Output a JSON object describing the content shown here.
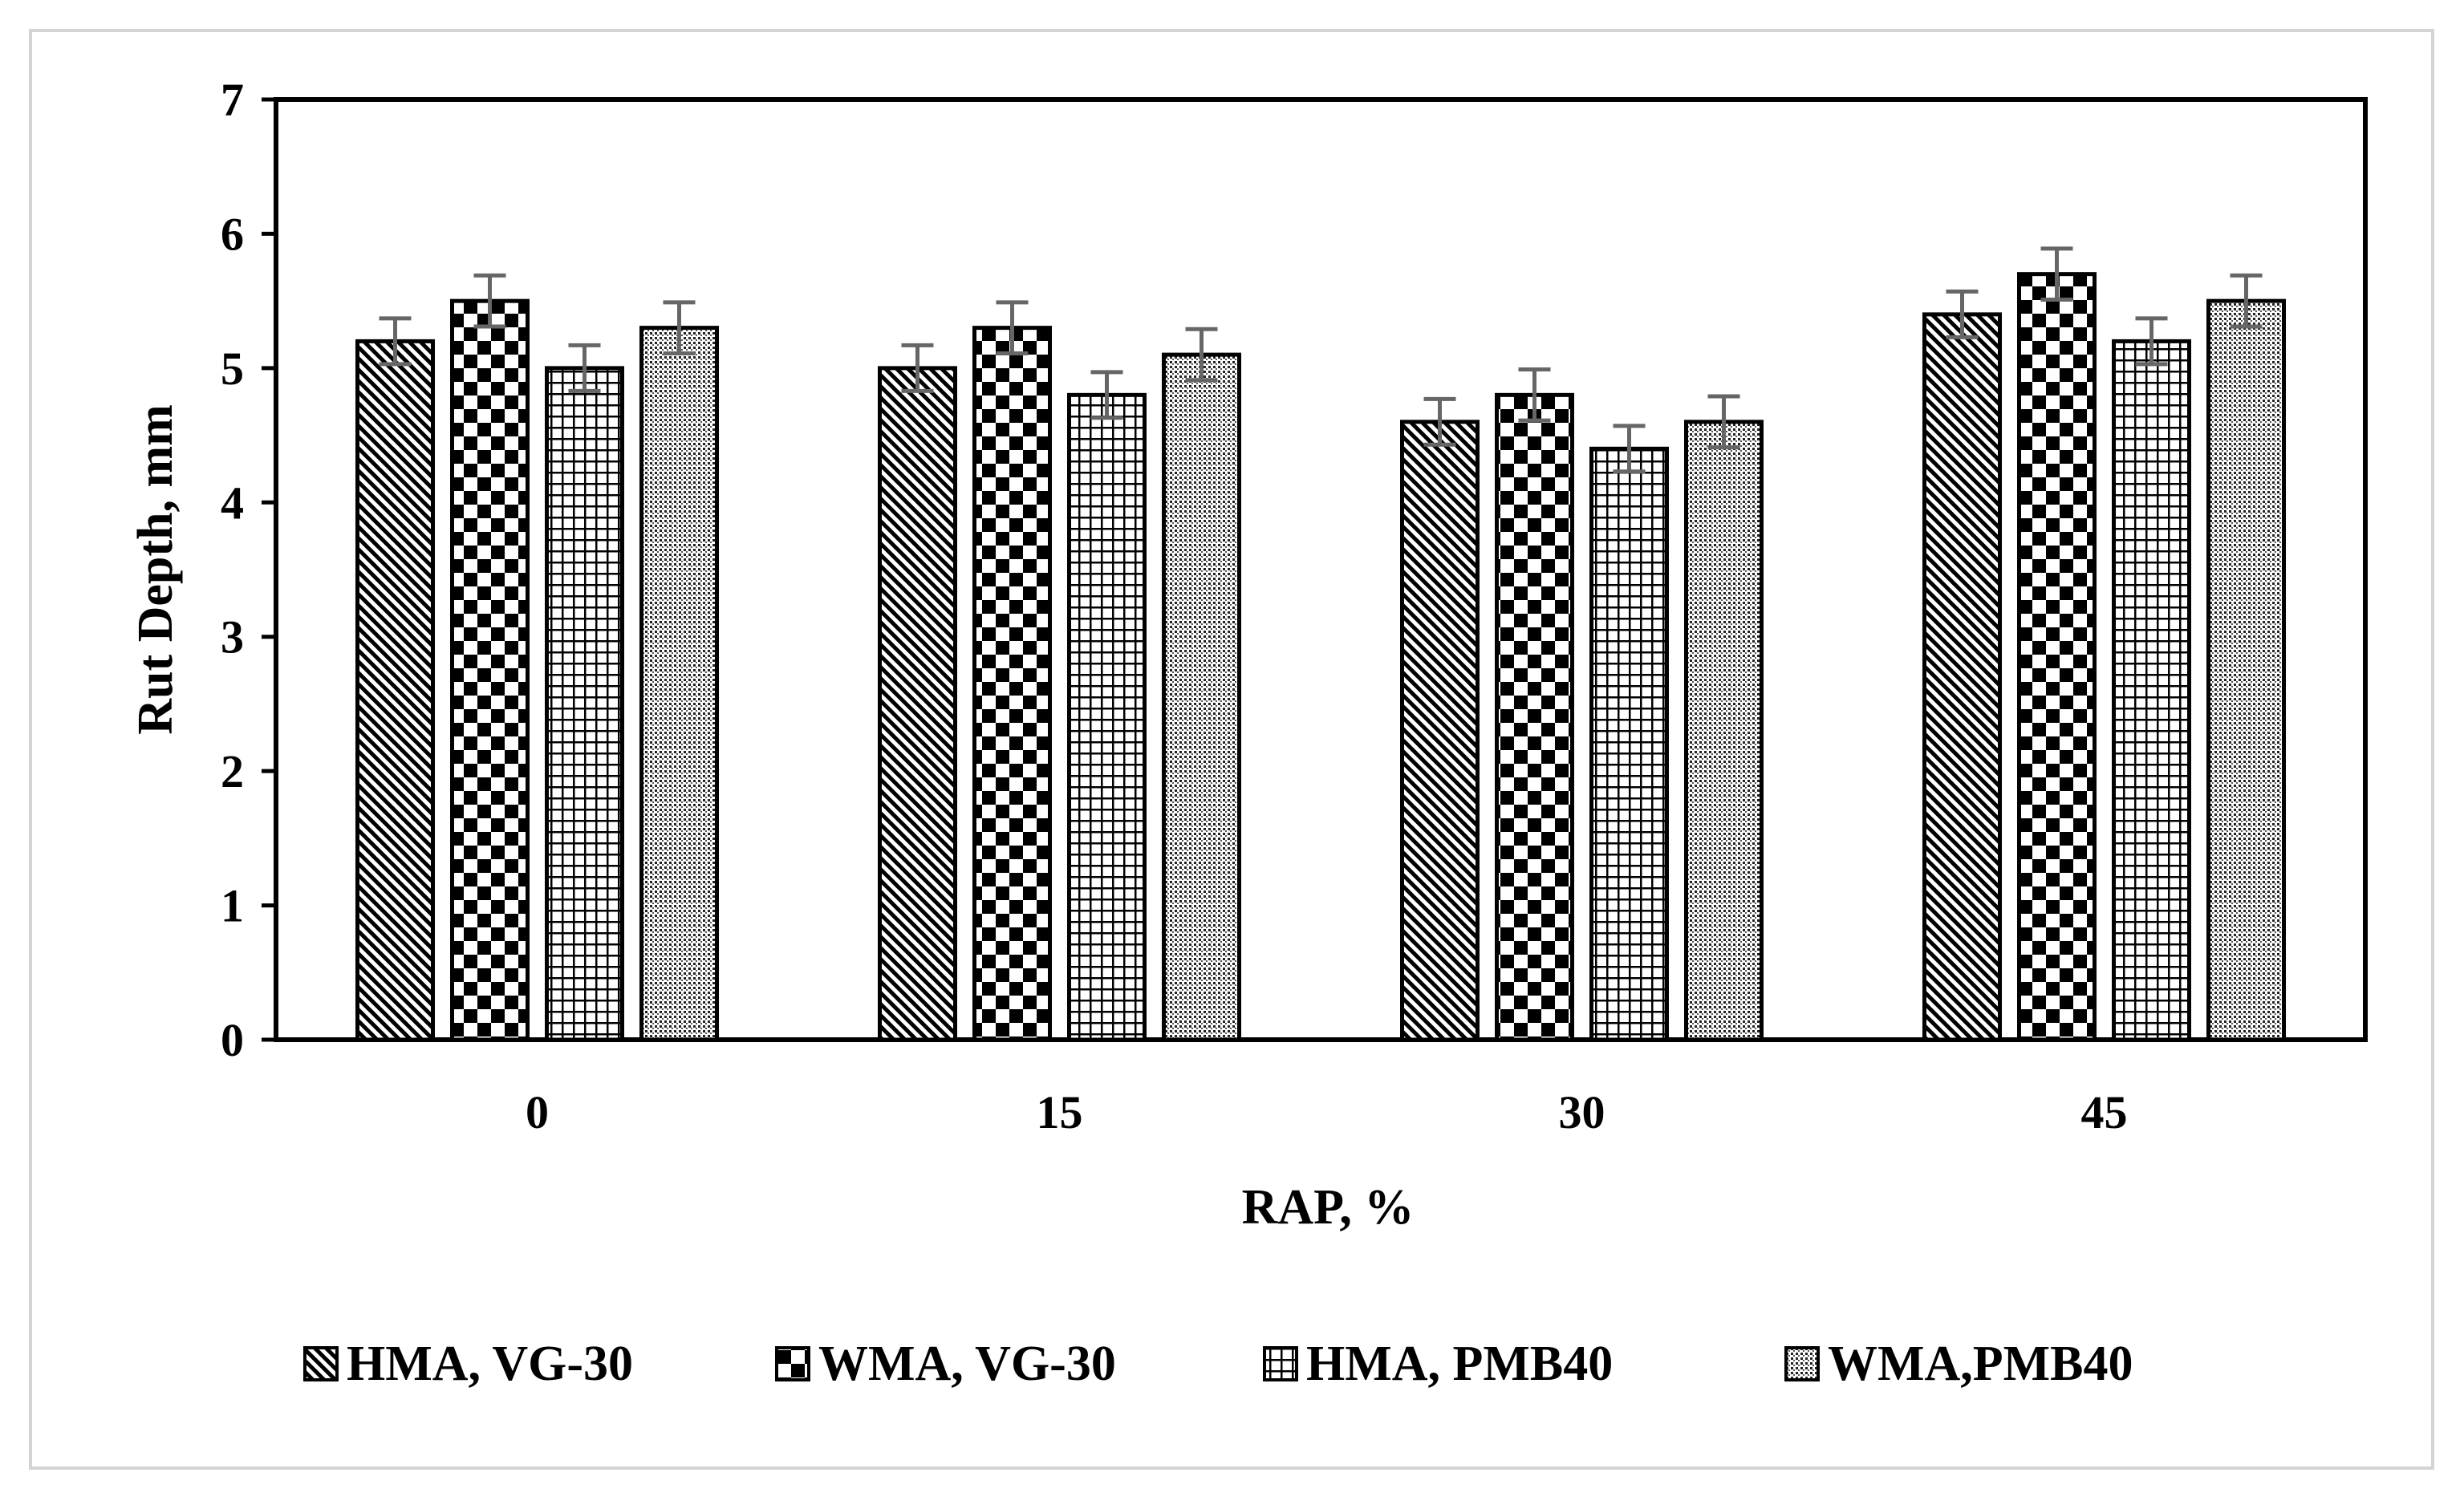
{
  "chart_data": {
    "type": "bar",
    "title": "",
    "xlabel": "RAP, %",
    "ylabel": "Rut Depth, mm",
    "categories": [
      "0",
      "15",
      "30",
      "45"
    ],
    "ylim": [
      0,
      7
    ],
    "yticks": [
      "0",
      "1",
      "2",
      "3",
      "4",
      "5",
      "6",
      "7"
    ],
    "grid": false,
    "legend_position": "bottom",
    "series": [
      {
        "name": "HMA, VG-30",
        "pattern": "diagonal",
        "values": [
          5.2,
          5.0,
          4.6,
          5.4
        ],
        "errors": [
          0.17,
          0.17,
          0.17,
          0.17
        ]
      },
      {
        "name": "WMA, VG-30",
        "pattern": "checker",
        "values": [
          5.5,
          5.3,
          4.8,
          5.7
        ],
        "errors": [
          0.19,
          0.19,
          0.19,
          0.19
        ]
      },
      {
        "name": "HMA, PMB40",
        "pattern": "grid",
        "values": [
          5.0,
          4.8,
          4.4,
          5.2
        ],
        "errors": [
          0.17,
          0.17,
          0.17,
          0.17
        ]
      },
      {
        "name": "WMA,PMB40",
        "pattern": "dots",
        "values": [
          5.3,
          5.1,
          4.6,
          5.5
        ],
        "errors": [
          0.19,
          0.19,
          0.19,
          0.19
        ]
      }
    ],
    "colors": {
      "ink": "#000000",
      "errorbar": "#666666",
      "background": "#ffffff",
      "frame": "#d4d4d4"
    }
  }
}
